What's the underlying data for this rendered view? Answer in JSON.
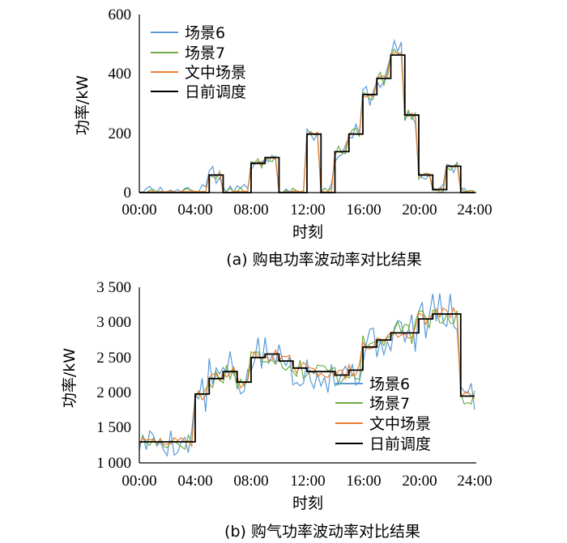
{
  "colors": {
    "scene6": "#5B9BD5",
    "scene7": "#70AD47",
    "proposed": "#ED7D31",
    "dayahead": "#000000"
  },
  "chart_data": [
    {
      "type": "line",
      "caption": "(a)  购电功率波动率对比结果",
      "xlabel": "时刻",
      "ylabel": "功率/kW",
      "xlim": [
        0,
        24
      ],
      "ylim": [
        0,
        600
      ],
      "xticks": [
        "00:00",
        "04:00",
        "08:00",
        "12:00",
        "16:00",
        "20:00",
        "24:00"
      ],
      "yticks": [
        "0",
        "200",
        "400",
        "600"
      ],
      "legend_position": "top-left",
      "series": [
        {
          "name": "场景6",
          "color": "#5B9BD5",
          "style": "noisy",
          "noise": 0.45,
          "floor": 0,
          "seed": 11
        },
        {
          "name": "场景7",
          "color": "#70AD47",
          "style": "noisy",
          "noise": 0.25,
          "floor": 0,
          "seed": 23
        },
        {
          "name": "文中场景",
          "color": "#ED7D31",
          "style": "noisy",
          "noise": 0.1,
          "floor": 0,
          "seed": 37
        },
        {
          "name": "日前调度",
          "color": "#000000",
          "style": "step"
        }
      ],
      "dayahead_hourly": [
        0,
        0,
        0,
        0,
        0,
        60,
        0,
        0,
        100,
        120,
        0,
        0,
        200,
        0,
        140,
        200,
        335,
        390,
        470,
        265,
        60,
        10,
        90,
        0
      ],
      "noise_base": [
        35,
        35,
        35,
        35,
        35,
        35,
        35,
        35,
        35,
        35,
        35,
        35,
        40,
        35,
        40,
        40,
        45,
        50,
        60,
        40,
        30,
        25,
        30,
        35
      ]
    },
    {
      "type": "line",
      "caption": "(b)  购气功率波动率对比结果",
      "xlabel": "时刻",
      "ylabel": "功率/kW",
      "xlim": [
        0,
        24
      ],
      "ylim": [
        1000,
        3500
      ],
      "xticks": [
        "00:00",
        "04:00",
        "08:00",
        "12:00",
        "16:00",
        "20:00",
        "24:00"
      ],
      "yticks": [
        "1 000",
        "1 500",
        "2 000",
        "2 500",
        "3 000",
        "3 500"
      ],
      "legend_position": "bottom-right",
      "series": [
        {
          "name": "场景6",
          "color": "#5B9BD5",
          "style": "noisy",
          "noise": 1.0,
          "floor": 1000,
          "seed": 5
        },
        {
          "name": "场景7",
          "color": "#70AD47",
          "style": "noisy",
          "noise": 0.55,
          "floor": 1000,
          "seed": 17
        },
        {
          "name": "文中场景",
          "color": "#ED7D31",
          "style": "noisy",
          "noise": 0.3,
          "floor": 1000,
          "seed": 29
        },
        {
          "name": "日前调度",
          "color": "#000000",
          "style": "step"
        }
      ],
      "dayahead_hourly": [
        1300,
        1300,
        1300,
        1300,
        1980,
        2200,
        2300,
        2150,
        2500,
        2550,
        2450,
        2350,
        2300,
        2300,
        2250,
        2320,
        2650,
        2750,
        2850,
        2850,
        3050,
        3120,
        3120,
        1950
      ],
      "noise_base": [
        110,
        110,
        110,
        110,
        150,
        150,
        150,
        150,
        150,
        150,
        150,
        150,
        150,
        150,
        150,
        150,
        150,
        150,
        150,
        150,
        150,
        150,
        150,
        150
      ]
    }
  ]
}
